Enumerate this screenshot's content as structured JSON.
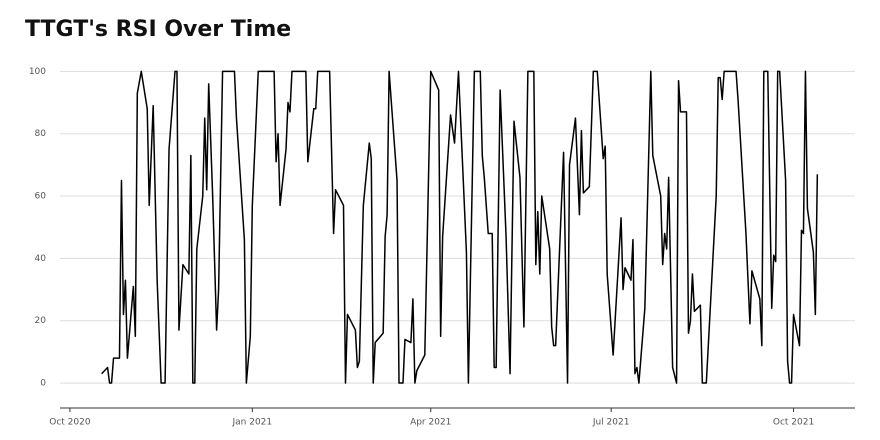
{
  "chart_data": {
    "type": "line",
    "title": "TTGT's RSI Over Time",
    "color": "#000000",
    "grid": true,
    "xlim": [
      "2020-09-26",
      "2021-11-01"
    ],
    "xticks": [
      {
        "value": "2020-10-01",
        "label": "Oct 2020"
      },
      {
        "value": "2021-01-01",
        "label": "Jan 2021"
      },
      {
        "value": "2021-04-01",
        "label": "Apr 2021"
      },
      {
        "value": "2021-07-01",
        "label": "Jul 2021"
      },
      {
        "value": "2021-10-01",
        "label": "Oct 2021"
      }
    ],
    "ylim": [
      -8,
      104
    ],
    "yticks": [
      0,
      20,
      40,
      60,
      80,
      100
    ],
    "x": [
      "2020-10-17",
      "2020-10-20",
      "2020-10-21",
      "2020-10-22",
      "2020-10-23",
      "2020-10-26",
      "2020-10-27",
      "2020-10-28",
      "2020-10-29",
      "2020-10-30",
      "2020-11-02",
      "2020-11-03",
      "2020-11-04",
      "2020-11-06",
      "2020-11-09",
      "2020-11-10",
      "2020-11-12",
      "2020-11-14",
      "2020-11-16",
      "2020-11-18",
      "2020-11-20",
      "2020-11-23",
      "2020-11-24",
      "2020-11-25",
      "2020-11-27",
      "2020-11-30",
      "2020-12-01",
      "2020-12-02",
      "2020-12-03",
      "2020-12-04",
      "2020-12-07",
      "2020-12-08",
      "2020-12-09",
      "2020-12-10",
      "2020-12-12",
      "2020-12-14",
      "2020-12-15",
      "2020-12-17",
      "2020-12-23",
      "2020-12-24",
      "2020-12-28",
      "2020-12-29",
      "2020-12-31",
      "2021-01-01",
      "2021-01-04",
      "2021-01-12",
      "2021-01-13",
      "2021-01-14",
      "2021-01-15",
      "2021-01-18",
      "2021-01-19",
      "2021-01-20",
      "2021-01-21",
      "2021-01-28",
      "2021-01-29",
      "2021-02-01",
      "2021-02-02",
      "2021-02-03",
      "2021-02-09",
      "2021-02-11",
      "2021-02-12",
      "2021-02-16",
      "2021-02-17",
      "2021-02-18",
      "2021-02-22",
      "2021-02-23",
      "2021-02-24",
      "2021-02-26",
      "2021-03-01",
      "2021-03-02",
      "2021-03-03",
      "2021-03-04",
      "2021-03-08",
      "2021-03-09",
      "2021-03-10",
      "2021-03-11",
      "2021-03-15",
      "2021-03-16",
      "2021-03-18",
      "2021-03-19",
      "2021-03-22",
      "2021-03-23",
      "2021-03-24",
      "2021-03-25",
      "2021-03-29",
      "2021-04-01",
      "2021-04-05",
      "2021-04-06",
      "2021-04-07",
      "2021-04-11",
      "2021-04-13",
      "2021-04-15",
      "2021-04-19",
      "2021-04-20",
      "2021-04-23",
      "2021-04-26",
      "2021-04-27",
      "2021-04-28",
      "2021-04-30",
      "2021-05-02",
      "2021-05-03",
      "2021-05-04",
      "2021-05-06",
      "2021-05-09",
      "2021-05-11",
      "2021-05-13",
      "2021-05-16",
      "2021-05-18",
      "2021-05-20",
      "2021-05-23",
      "2021-05-24",
      "2021-05-25",
      "2021-05-26",
      "2021-05-27",
      "2021-05-31",
      "2021-06-01",
      "2021-06-02",
      "2021-06-03",
      "2021-06-07",
      "2021-06-09",
      "2021-06-10",
      "2021-06-13",
      "2021-06-15",
      "2021-06-16",
      "2021-06-17",
      "2021-06-20",
      "2021-06-22",
      "2021-06-24",
      "2021-06-27",
      "2021-06-28",
      "2021-06-29",
      "2021-07-02",
      "2021-07-06",
      "2021-07-07",
      "2021-07-08",
      "2021-07-11",
      "2021-07-12",
      "2021-07-13",
      "2021-07-14",
      "2021-07-15",
      "2021-07-18",
      "2021-07-21",
      "2021-07-22",
      "2021-07-26",
      "2021-07-27",
      "2021-07-28",
      "2021-07-29",
      "2021-07-30",
      "2021-08-01",
      "2021-08-03",
      "2021-08-04",
      "2021-08-05",
      "2021-08-08",
      "2021-08-09",
      "2021-08-10",
      "2021-08-11",
      "2021-08-12",
      "2021-08-15",
      "2021-08-16",
      "2021-08-18",
      "2021-08-23",
      "2021-08-24",
      "2021-08-25",
      "2021-08-26",
      "2021-08-27",
      "2021-09-02",
      "2021-09-03",
      "2021-09-07",
      "2021-09-09",
      "2021-09-10",
      "2021-09-14",
      "2021-09-15",
      "2021-09-16",
      "2021-09-18",
      "2021-09-20",
      "2021-09-21",
      "2021-09-22",
      "2021-09-23",
      "2021-09-24",
      "2021-09-27",
      "2021-09-28",
      "2021-09-29",
      "2021-09-30",
      "2021-10-01",
      "2021-10-04",
      "2021-10-05",
      "2021-10-06",
      "2021-10-07",
      "2021-10-08",
      "2021-10-11",
      "2021-10-12",
      "2021-10-13"
    ],
    "values": [
      3,
      5,
      0,
      0,
      8,
      8,
      65,
      22,
      33,
      8,
      31,
      15,
      93,
      100,
      88,
      57,
      89,
      33,
      0,
      0,
      75,
      100,
      100,
      17,
      38,
      35,
      73,
      0,
      0,
      43,
      60,
      85,
      62,
      96,
      60,
      17,
      30,
      100,
      100,
      85,
      46,
      0,
      15,
      57,
      100,
      100,
      71,
      80,
      57,
      75,
      90,
      87,
      100,
      100,
      71,
      88,
      88,
      100,
      100,
      48,
      62,
      57,
      0,
      22,
      17,
      5,
      7,
      57,
      77,
      72,
      0,
      13,
      16,
      47,
      54,
      100,
      65,
      0,
      0,
      14,
      13,
      27,
      0,
      4,
      9,
      100,
      94,
      15,
      47,
      86,
      77,
      100,
      42,
      0,
      100,
      100,
      73,
      66,
      48,
      48,
      5,
      5,
      94,
      47,
      3,
      84,
      66,
      18,
      100,
      100,
      38,
      55,
      35,
      60,
      43,
      18,
      12,
      12,
      74,
      0,
      70,
      85,
      54,
      81,
      61,
      63,
      100,
      100,
      72,
      76,
      35,
      9,
      53,
      30,
      37,
      33,
      46,
      3,
      5,
      0,
      24,
      100,
      73,
      60,
      38,
      48,
      43,
      66,
      5,
      0,
      97,
      87,
      87,
      16,
      20,
      35,
      23,
      25,
      0,
      0,
      60,
      98,
      98,
      91,
      100,
      100,
      91,
      48,
      19,
      36,
      27,
      12,
      100,
      100,
      24,
      41,
      39,
      100,
      100,
      65,
      7,
      0,
      0,
      22,
      12,
      49,
      48,
      100,
      56,
      42,
      22,
      67
    ]
  }
}
